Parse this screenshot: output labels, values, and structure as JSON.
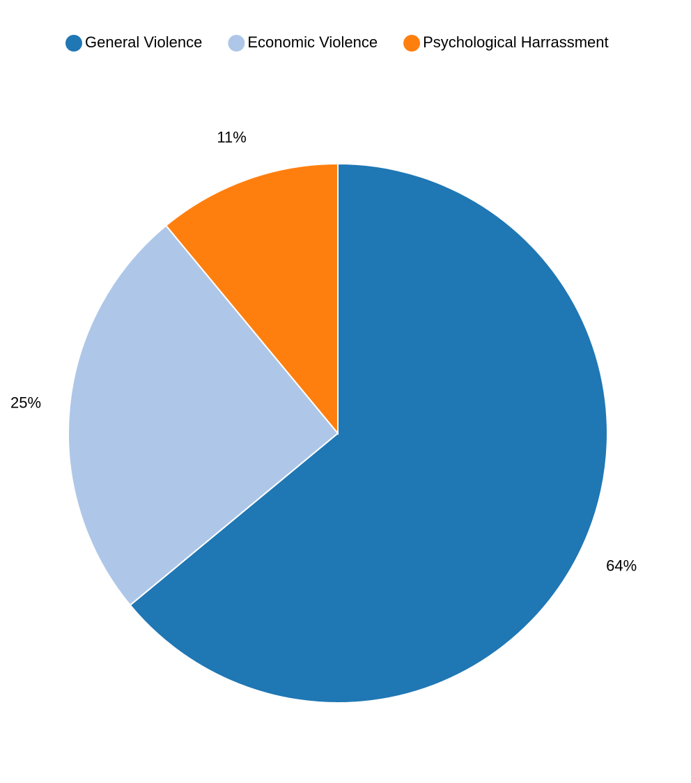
{
  "chart_data": {
    "type": "pie",
    "categories": [
      "General Violence",
      "Economic Violence",
      "Psychological Harrassment"
    ],
    "values": [
      64,
      25,
      11
    ],
    "value_labels": [
      "64%",
      "25%",
      "11%"
    ],
    "colors": [
      "#1f77b4",
      "#aec7e8",
      "#ff7f0e"
    ],
    "legend": "top"
  }
}
